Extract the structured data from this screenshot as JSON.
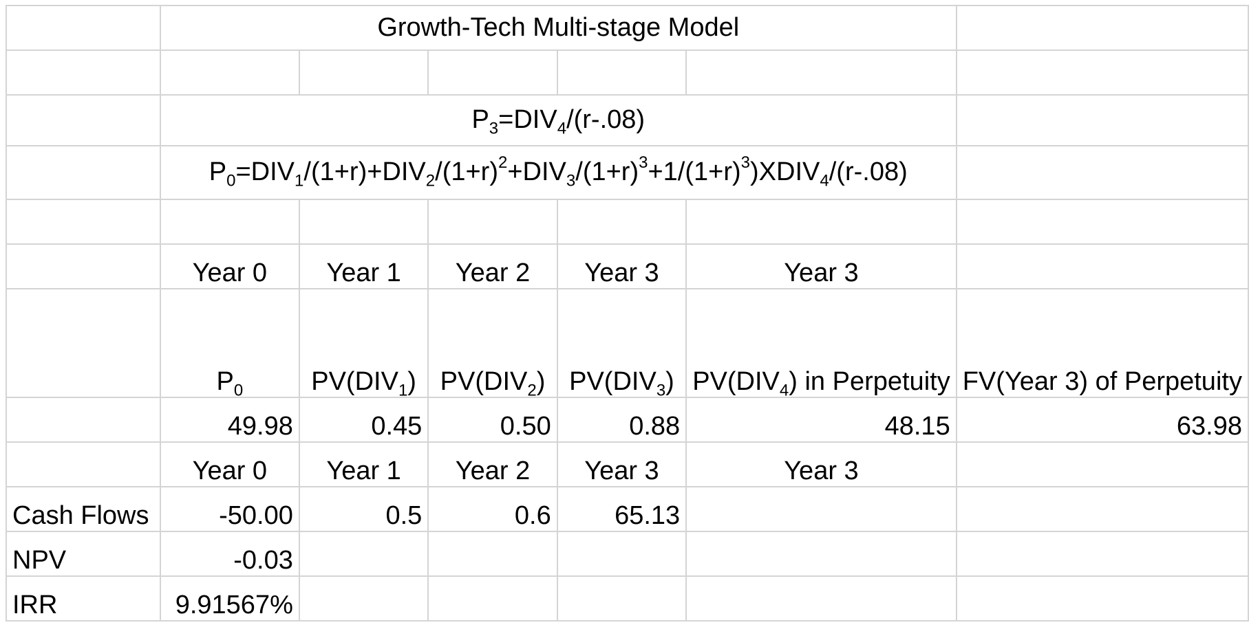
{
  "sheet": {
    "title": "Growth-Tech Multi-stage Model",
    "formula1": {
      "a": "P",
      "a_sub": "3",
      "b": "=DIV",
      "b_sub": "4",
      "c": "/(r-.08)"
    },
    "formula2": {
      "p": "P",
      "p_sub": "0",
      "d1": "=DIV",
      "d1_sub": "1",
      "t1": "/(1+r)+DIV",
      "d2_sub": "2",
      "t2": "/(1+r)",
      "e2": "2",
      "t3": "+DIV",
      "d3_sub": "3",
      "t4": "/(1+r)",
      "e3": "3",
      "t5": "+1/(1+r)",
      "e4": "3",
      "t6": ")XDIV",
      "d4_sub": "4",
      "t7": "/(r-.08)"
    },
    "years_row1": [
      "Year 0",
      "Year 1",
      "Year 2",
      "Year 3",
      "Year 3"
    ],
    "labels": {
      "p0": "P",
      "p0_sub": "0",
      "pv": "PV(DIV",
      "pv_close": ")",
      "pv1_sub": "1",
      "pv2_sub": "2",
      "pv3_sub": "3",
      "perp_a": "PV(DIV",
      "perp_sub": "4",
      "perp_b": ") in Perpetuity",
      "fv": "FV(Year 3) of Perpetuity"
    },
    "values": [
      "49.98",
      "0.45",
      "0.50",
      "0.88",
      "48.15",
      "63.98"
    ],
    "years_row2": [
      "Year 0",
      "Year 1",
      "Year 2",
      "Year 3",
      "Year 3"
    ],
    "cash_flows": {
      "label": "Cash Flows",
      "values": [
        "-50.00",
        "0.5",
        "0.6",
        "65.13"
      ]
    },
    "npv": {
      "label": "NPV",
      "value": "-0.03"
    },
    "irr": {
      "label": "IRR",
      "value": "9.91567%"
    }
  }
}
